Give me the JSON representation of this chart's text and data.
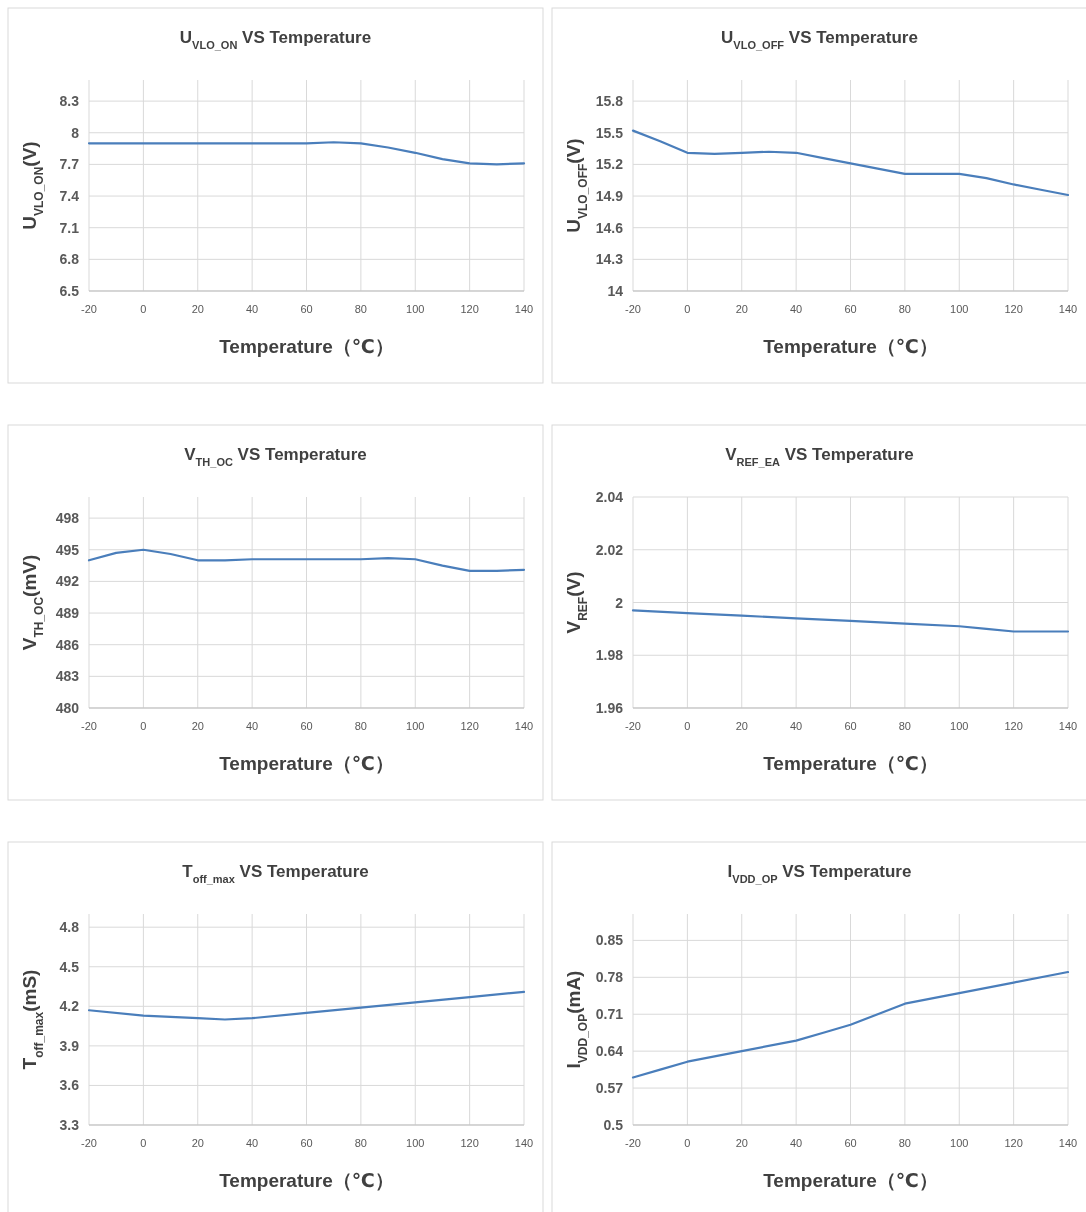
{
  "chart_data": [
    {
      "type": "line",
      "title": "U$_{VLO_ON}$ VS Temperature",
      "xlabel": "Temperature（℃）",
      "ylabel": "U$_{VLO_ON}$(V)",
      "xlim": [
        -20,
        140
      ],
      "xticks": [
        -20,
        0,
        20,
        40,
        60,
        80,
        100,
        120,
        140
      ],
      "ylim": [
        6.5,
        8.5
      ],
      "yticks": [
        6.5,
        6.8,
        7.1,
        7.4,
        7.7,
        8,
        8.3
      ],
      "grid": true,
      "x": [
        -20,
        -10,
        0,
        10,
        20,
        30,
        40,
        50,
        60,
        70,
        80,
        90,
        100,
        110,
        120,
        130,
        140
      ],
      "series": [
        {
          "color": "#4a7ebb",
          "values": [
            7.9,
            7.9,
            7.9,
            7.9,
            7.9,
            7.9,
            7.9,
            7.9,
            7.9,
            7.91,
            7.9,
            7.86,
            7.81,
            7.75,
            7.71,
            7.7,
            7.71
          ]
        }
      ]
    },
    {
      "type": "line",
      "title": "U$_{VLO_OFF}$ VS Temperature",
      "xlabel": "Temperature（℃）",
      "ylabel": "U$_{VLO_OFF}$(V)",
      "xlim": [
        -20,
        140
      ],
      "xticks": [
        -20,
        0,
        20,
        40,
        60,
        80,
        100,
        120,
        140
      ],
      "ylim": [
        14,
        16
      ],
      "yticks": [
        14,
        14.3,
        14.6,
        14.9,
        15.2,
        15.5,
        15.8
      ],
      "grid": true,
      "x": [
        -20,
        -10,
        0,
        10,
        20,
        30,
        40,
        50,
        60,
        70,
        80,
        90,
        100,
        110,
        120,
        130,
        140
      ],
      "series": [
        {
          "color": "#4a7ebb",
          "values": [
            15.52,
            15.42,
            15.31,
            15.3,
            15.31,
            15.32,
            15.31,
            15.26,
            15.21,
            15.16,
            15.11,
            15.11,
            15.11,
            15.07,
            15.01,
            14.96,
            14.91
          ]
        }
      ]
    },
    {
      "type": "line",
      "title": "V$_{TH_OC}$ VS Temperature",
      "xlabel": "Temperature（℃）",
      "ylabel": "V$_{TH_OC}$(mV)",
      "xlim": [
        -20,
        140
      ],
      "xticks": [
        -20,
        0,
        20,
        40,
        60,
        80,
        100,
        120,
        140
      ],
      "ylim": [
        480,
        500
      ],
      "yticks": [
        480,
        483,
        486,
        489,
        492,
        495,
        498
      ],
      "grid": true,
      "x": [
        -20,
        -10,
        0,
        10,
        20,
        30,
        40,
        50,
        60,
        70,
        80,
        90,
        100,
        110,
        120,
        130,
        140
      ],
      "series": [
        {
          "color": "#4a7ebb",
          "values": [
            494,
            494.7,
            495,
            494.6,
            494,
            494,
            494.1,
            494.1,
            494.1,
            494.1,
            494.1,
            494.2,
            494.1,
            493.5,
            493,
            493,
            493.1
          ]
        }
      ]
    },
    {
      "type": "line",
      "title": "V$_{REF_EA}$ VS Temperature",
      "xlabel": "Temperature（℃）",
      "ylabel": "V$_{REF}$(V)",
      "xlim": [
        -20,
        140
      ],
      "xticks": [
        -20,
        0,
        20,
        40,
        60,
        80,
        100,
        120,
        140
      ],
      "ylim": [
        1.96,
        2.04
      ],
      "yticks": [
        1.96,
        1.98,
        2,
        2.02,
        2.04
      ],
      "grid": true,
      "x": [
        -20,
        0,
        20,
        40,
        60,
        80,
        100,
        110,
        120,
        130,
        140
      ],
      "series": [
        {
          "color": "#4a7ebb",
          "values": [
            1.997,
            1.996,
            1.995,
            1.994,
            1.993,
            1.992,
            1.991,
            1.99,
            1.989,
            1.989,
            1.989
          ]
        }
      ]
    },
    {
      "type": "line",
      "title": "T$_{off_max}$ VS Temperature",
      "xlabel": "Temperature（℃）",
      "ylabel": "T$_{off_max}$(mS)",
      "xlim": [
        -20,
        140
      ],
      "xticks": [
        -20,
        0,
        20,
        40,
        60,
        80,
        100,
        120,
        140
      ],
      "ylim": [
        3.3,
        4.9
      ],
      "yticks": [
        3.3,
        3.6,
        3.9,
        4.2,
        4.5,
        4.8
      ],
      "grid": true,
      "x": [
        -20,
        0,
        20,
        30,
        40,
        60,
        80,
        100,
        120,
        140
      ],
      "series": [
        {
          "color": "#4a7ebb",
          "values": [
            4.17,
            4.13,
            4.11,
            4.1,
            4.11,
            4.15,
            4.19,
            4.23,
            4.27,
            4.31
          ]
        }
      ]
    },
    {
      "type": "line",
      "title": "I$_{VDD_OP}$ VS Temperature",
      "xlabel": "Temperature（℃）",
      "ylabel": "I$_{VDD_OP}$(mA)",
      "xlim": [
        -20,
        140
      ],
      "xticks": [
        -20,
        0,
        20,
        40,
        60,
        80,
        100,
        120,
        140
      ],
      "ylim": [
        0.5,
        0.9
      ],
      "yticks": [
        0.5,
        0.57,
        0.64,
        0.71,
        0.78,
        0.85
      ],
      "grid": true,
      "x": [
        -20,
        -10,
        0,
        20,
        40,
        50,
        60,
        70,
        80,
        90,
        100,
        120,
        140
      ],
      "series": [
        {
          "color": "#4a7ebb",
          "values": [
            0.59,
            0.605,
            0.62,
            0.64,
            0.66,
            0.675,
            0.69,
            0.71,
            0.73,
            0.74,
            0.75,
            0.77,
            0.79
          ]
        }
      ]
    }
  ]
}
